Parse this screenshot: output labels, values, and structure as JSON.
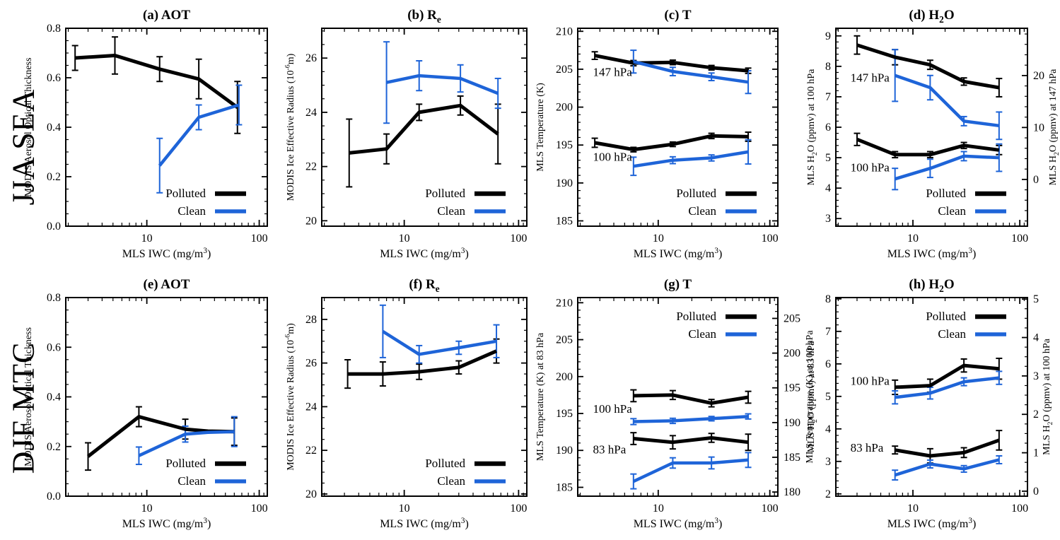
{
  "figure": {
    "background": "#ffffff",
    "colors": {
      "polluted": "#000000",
      "clean": "#1e64d8",
      "axis": "#000000"
    },
    "legend_labels": {
      "polluted": "Polluted",
      "clean": "Clean"
    },
    "row_labels": [
      {
        "text": "JJA SEA"
      },
      {
        "text": "DJF MTC"
      }
    ]
  },
  "chart_data": [
    {
      "id": "a",
      "row": 0,
      "col": 0,
      "type": "line",
      "title": "(a)  AOT",
      "xlabel": "MLS IWC (mg/m^{3})",
      "ylabel": "MODIS Aerosol Optical Thickness",
      "x_scale": "log",
      "xlim": [
        1.9,
        118
      ],
      "xticks": [
        10,
        100
      ],
      "ylim": [
        0,
        0.8
      ],
      "yticks": [
        0,
        0.2,
        0.4,
        0.6,
        0.8
      ],
      "ydecimals": 1,
      "yminor": 0.05,
      "legend_pos": "br",
      "annotations": [],
      "series": [
        {
          "label": "Polluted",
          "color": "polluted",
          "x": [
            2.3,
            5.2,
            13,
            29,
            64
          ],
          "y": [
            0.68,
            0.69,
            0.635,
            0.595,
            0.48
          ],
          "yerr": [
            0.05,
            0.075,
            0.05,
            0.08,
            0.105
          ]
        },
        {
          "label": "Clean",
          "color": "clean",
          "x": [
            13,
            29,
            66
          ],
          "y": [
            0.245,
            0.44,
            0.49
          ],
          "yerr": [
            0.11,
            0.05,
            0.08
          ]
        }
      ]
    },
    {
      "id": "b",
      "row": 0,
      "col": 1,
      "type": "line",
      "title": "(b)  R_{e}",
      "xlabel": "MLS IWC (mg/m^{3})",
      "ylabel": "MODIS Ice Effective Radius (10^{-6}m)",
      "x_scale": "log",
      "xlim": [
        1.9,
        118
      ],
      "xticks": [
        10,
        100
      ],
      "ylim": [
        19.8,
        27.1
      ],
      "yticks": [
        20,
        22,
        24,
        26
      ],
      "ydecimals": 0,
      "yminor": 0.5,
      "legend_pos": "br",
      "annotations": [],
      "series": [
        {
          "label": "Polluted",
          "color": "polluted",
          "x": [
            3.3,
            7,
            13.5,
            31,
            66
          ],
          "y": [
            22.5,
            22.65,
            24.0,
            24.25,
            23.2
          ],
          "yerr": [
            1.25,
            0.55,
            0.3,
            0.35,
            1.1
          ]
        },
        {
          "label": "Clean",
          "color": "clean",
          "x": [
            7,
            13.5,
            31,
            66
          ],
          "y": [
            25.1,
            25.35,
            25.25,
            24.7
          ],
          "yerr": [
            1.5,
            0.55,
            0.5,
            0.55
          ]
        }
      ]
    },
    {
      "id": "c",
      "row": 0,
      "col": 2,
      "type": "line",
      "title": "(c)  T",
      "xlabel": "MLS IWC (mg/m^{3})",
      "ylabel": "MLS Temperature (K)",
      "x_scale": "log",
      "xlim": [
        1.9,
        118
      ],
      "xticks": [
        10,
        100
      ],
      "ylim": [
        184.3,
        210.4
      ],
      "yticks": [
        185,
        190,
        195,
        200,
        205,
        210
      ],
      "ydecimals": 0,
      "yminor": 1,
      "legend_pos": "br",
      "annotations": [
        {
          "text": "147 hPa",
          "x": 2.6,
          "y": 204.1
        },
        {
          "text": "100 hPa",
          "x": 2.6,
          "y": 192.9
        }
      ],
      "series": [
        {
          "label": "Polluted",
          "pressure": "147 hPa",
          "color": "polluted",
          "x": [
            2.7,
            6,
            13.5,
            30,
            64
          ],
          "y": [
            206.8,
            205.8,
            205.9,
            205.2,
            204.8
          ],
          "yerr": [
            0.5,
            0.35,
            0.3,
            0.3,
            0.35
          ]
        },
        {
          "label": "Clean",
          "pressure": "147 hPa",
          "color": "clean",
          "x": [
            6,
            13.5,
            30,
            64
          ],
          "y": [
            206.0,
            204.7,
            204.0,
            203.3
          ],
          "yerr": [
            1.5,
            0.55,
            0.5,
            1.5
          ]
        },
        {
          "label": "Polluted",
          "pressure": "100 hPa",
          "color": "polluted",
          "x": [
            2.7,
            6,
            13.5,
            30,
            64
          ],
          "y": [
            195.3,
            194.4,
            195.1,
            196.2,
            196.1
          ],
          "yerr": [
            0.6,
            0.3,
            0.3,
            0.35,
            0.6
          ]
        },
        {
          "label": "Clean",
          "pressure": "100 hPa",
          "color": "clean",
          "x": [
            6,
            13.5,
            30,
            64
          ],
          "y": [
            192.2,
            193.0,
            193.3,
            194.1
          ],
          "yerr": [
            1.2,
            0.45,
            0.4,
            1.6
          ]
        }
      ]
    },
    {
      "id": "d",
      "row": 0,
      "col": 3,
      "type": "line",
      "title": "(d)  H_{2}O",
      "xlabel": "MLS IWC (mg/m^{3})",
      "ylabel": "MLS H_{2}O (ppmv) at 100 hPa",
      "y2label": "MLS H_{2}O (ppmv) at 147 hPa",
      "x_scale": "log",
      "xlim": [
        1.9,
        118
      ],
      "xticks": [
        10,
        100
      ],
      "ylim": [
        2.75,
        9.25
      ],
      "yticks": [
        3,
        4,
        5,
        6,
        7,
        8,
        9
      ],
      "ydecimals": 0,
      "yminor": 0.2,
      "y2lim": [
        -9.0,
        29.1
      ],
      "y2ticks": [
        0,
        10,
        20
      ],
      "y2decimals": 0,
      "y2minor": 2,
      "legend_pos": "br",
      "annotations": [
        {
          "text": "147 hPa",
          "x": 2.6,
          "y": 7.5
        },
        {
          "text": "100 hPa",
          "x": 2.6,
          "y": 4.55
        }
      ],
      "series": [
        {
          "label": "Polluted",
          "pressure": "147 hPa",
          "color": "polluted",
          "x": [
            3,
            6.8,
            14.5,
            30,
            64
          ],
          "y": [
            8.7,
            8.3,
            8.05,
            7.5,
            7.3
          ],
          "yerr": [
            0.3,
            0.25,
            0.15,
            0.12,
            0.3
          ]
        },
        {
          "label": "Clean",
          "pressure": "147 hPa",
          "color": "clean",
          "x": [
            6.8,
            14.5,
            30,
            64
          ],
          "y": [
            7.7,
            7.3,
            6.2,
            6.05
          ],
          "yerr": [
            0.85,
            0.4,
            0.15,
            0.45
          ]
        },
        {
          "label": "Polluted",
          "pressure": "100 hPa",
          "color": "polluted",
          "x": [
            3,
            6.8,
            14.5,
            30,
            64
          ],
          "y": [
            5.6,
            5.1,
            5.1,
            5.4,
            5.25
          ],
          "yerr": [
            0.2,
            0.1,
            0.1,
            0.1,
            0.15
          ]
        },
        {
          "label": "Clean",
          "pressure": "100 hPa",
          "color": "clean",
          "x": [
            6.8,
            14.5,
            30,
            64
          ],
          "y": [
            4.3,
            4.65,
            5.05,
            5.0
          ],
          "yerr": [
            0.35,
            0.3,
            0.15,
            0.45
          ]
        }
      ]
    },
    {
      "id": "e",
      "row": 1,
      "col": 0,
      "type": "line",
      "title": "(e)  AOT",
      "xlabel": "MLS IWC (mg/m^{3})",
      "ylabel": "MODIS Aerosol Optical Thickness",
      "x_scale": "log",
      "xlim": [
        1.9,
        118
      ],
      "xticks": [
        10,
        100
      ],
      "ylim": [
        0,
        0.8
      ],
      "yticks": [
        0,
        0.2,
        0.4,
        0.6,
        0.8
      ],
      "ydecimals": 1,
      "yminor": 0.05,
      "legend_pos": "br",
      "annotations": [],
      "series": [
        {
          "label": "Polluted",
          "color": "polluted",
          "x": [
            3,
            8.5,
            22,
            35,
            60
          ],
          "y": [
            0.16,
            0.32,
            0.27,
            0.262,
            0.26
          ],
          "yerr": [
            0.055,
            0.04,
            0.04,
            0,
            0.055
          ]
        },
        {
          "label": "Clean",
          "color": "clean",
          "x": [
            8.5,
            22,
            35,
            60
          ],
          "y": [
            0.163,
            0.25,
            0.257,
            0.26
          ],
          "yerr": [
            0.035,
            0.032,
            0,
            0.06
          ]
        }
      ]
    },
    {
      "id": "f",
      "row": 1,
      "col": 1,
      "type": "line",
      "title": "(f)  R_{e}",
      "xlabel": "MLS IWC (mg/m^{3})",
      "ylabel": "MODIS Ice Effective Radius (10^{-6}m)",
      "x_scale": "log",
      "xlim": [
        1.9,
        118
      ],
      "xticks": [
        10,
        100
      ],
      "ylim": [
        19.9,
        29.0
      ],
      "yticks": [
        20,
        22,
        24,
        26,
        28
      ],
      "ydecimals": 0,
      "yminor": 0.5,
      "legend_pos": "br",
      "annotations": [],
      "series": [
        {
          "label": "Polluted",
          "color": "polluted",
          "x": [
            3.2,
            6.5,
            13.5,
            30,
            64
          ],
          "y": [
            25.5,
            25.5,
            25.6,
            25.8,
            26.55
          ],
          "yerr": [
            0.65,
            0.55,
            0.35,
            0.3,
            0.55
          ]
        },
        {
          "label": "Clean",
          "color": "clean",
          "x": [
            6.5,
            13.5,
            30,
            64
          ],
          "y": [
            27.45,
            26.4,
            26.7,
            27.0
          ],
          "yerr": [
            1.2,
            0.4,
            0.3,
            0.75
          ]
        }
      ]
    },
    {
      "id": "g",
      "row": 1,
      "col": 2,
      "type": "line",
      "title": "(g)  T",
      "xlabel": "MLS IWC (mg/m^{3})",
      "ylabel": "MLS Temperature (K) at 83 hPa",
      "y2label": "MLS Temperature (K) at 100 hPa",
      "x_scale": "log",
      "xlim": [
        1.9,
        118
      ],
      "xticks": [
        10,
        100
      ],
      "ylim": [
        183.8,
        210.7
      ],
      "yticks": [
        185,
        190,
        195,
        200,
        205,
        210
      ],
      "ydecimals": 0,
      "yminor": 1,
      "y2lim": [
        179.4,
        208.0
      ],
      "y2ticks": [
        180,
        185,
        190,
        195,
        200,
        205
      ],
      "y2decimals": 0,
      "y2minor": 1,
      "legend_pos": "tr",
      "annotations": [
        {
          "text": "100 hPa",
          "x": 2.6,
          "y": 195.1
        },
        {
          "text": "83 hPa",
          "x": 2.6,
          "y": 189.6
        }
      ],
      "series": [
        {
          "label": "Polluted",
          "pressure": "100 hPa",
          "color": "polluted",
          "x": [
            6,
            13.5,
            30,
            64
          ],
          "y": [
            197.4,
            197.5,
            196.4,
            197.2
          ],
          "yerr": [
            0.8,
            0.6,
            0.5,
            0.8
          ]
        },
        {
          "label": "Clean",
          "pressure": "100 hPa",
          "color": "clean",
          "x": [
            6,
            13.5,
            30,
            64
          ],
          "y": [
            193.9,
            194.0,
            194.3,
            194.6
          ],
          "yerr": [
            0.4,
            0.35,
            0.3,
            0.35
          ]
        },
        {
          "label": "Polluted",
          "pressure": "83 hPa",
          "color": "polluted",
          "x": [
            6,
            13.5,
            30,
            64
          ],
          "y": [
            191.6,
            191.1,
            191.7,
            191.1
          ],
          "yerr": [
            0.8,
            0.9,
            0.6,
            1.1
          ]
        },
        {
          "label": "Clean",
          "pressure": "83 hPa",
          "color": "clean",
          "x": [
            6,
            13.5,
            30,
            64
          ],
          "y": [
            185.8,
            188.3,
            188.3,
            188.7
          ],
          "yerr": [
            1.0,
            0.7,
            0.8,
            1.0
          ]
        }
      ]
    },
    {
      "id": "h",
      "row": 1,
      "col": 3,
      "type": "line",
      "title": "(h)  H_{2}O",
      "xlabel": "MLS IWC (mg/m^{3})",
      "ylabel": "MLS H_{2}O (ppmv) at 83 hPa",
      "y2label": "MLS H_{2}O (ppmv) at 100 hPa",
      "x_scale": "log",
      "xlim": [
        1.9,
        118
      ],
      "xticks": [
        10,
        100
      ],
      "ylim": [
        1.93,
        8.04
      ],
      "yticks": [
        2,
        3,
        4,
        5,
        6,
        7,
        8
      ],
      "ydecimals": 0,
      "yminor": 0.2,
      "y2lim": [
        -0.13,
        5.04
      ],
      "y2ticks": [
        0,
        1,
        2,
        3,
        4,
        5
      ],
      "y2decimals": 0,
      "y2minor": 0.25,
      "legend_pos": "tr",
      "annotations": [
        {
          "text": "100 hPa",
          "x": 2.6,
          "y": 5.35
        },
        {
          "text": "83 hPa",
          "x": 2.6,
          "y": 3.3
        }
      ],
      "series": [
        {
          "label": "Polluted",
          "pressure": "100 hPa",
          "color": "polluted",
          "x": [
            6.8,
            14.5,
            30,
            64
          ],
          "y": [
            5.28,
            5.33,
            5.95,
            5.85
          ],
          "yerr": [
            0.22,
            0.2,
            0.2,
            0.32
          ]
        },
        {
          "label": "Clean",
          "pressure": "100 hPa",
          "color": "clean",
          "x": [
            6.8,
            14.5,
            30,
            64
          ],
          "y": [
            4.97,
            5.1,
            5.45,
            5.57
          ],
          "yerr": [
            0.2,
            0.18,
            0.12,
            0.2
          ]
        },
        {
          "label": "Polluted",
          "pressure": "83 hPa",
          "color": "polluted",
          "x": [
            6.8,
            14.5,
            30,
            64
          ],
          "y": [
            3.35,
            3.17,
            3.27,
            3.65
          ],
          "yerr": [
            0.12,
            0.22,
            0.15,
            0.3
          ]
        },
        {
          "label": "Clean",
          "pressure": "83 hPa",
          "color": "clean",
          "x": [
            6.8,
            14.5,
            30,
            64
          ],
          "y": [
            2.58,
            2.92,
            2.77,
            3.05
          ],
          "yerr": [
            0.15,
            0.12,
            0.1,
            0.12
          ]
        }
      ]
    }
  ]
}
